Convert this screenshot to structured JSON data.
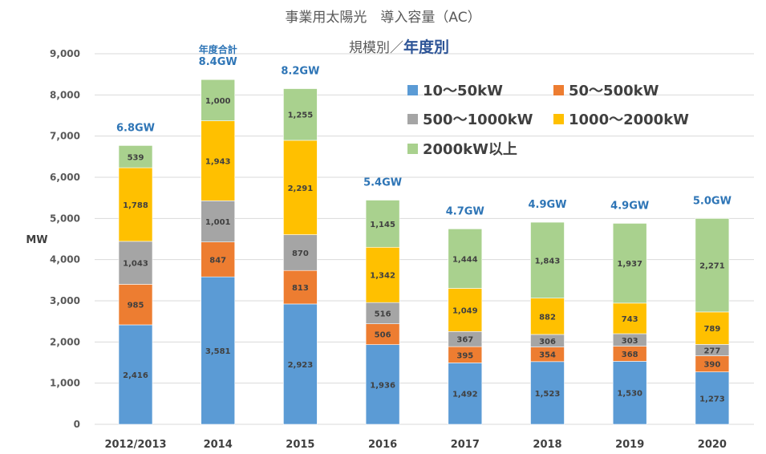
{
  "chart_data": {
    "type": "bar",
    "stacked": true,
    "title": "事業用太陽光　導入容量（AC）",
    "subtitle_prefix": "規模別／",
    "subtitle_emphasis": "年度別",
    "ylabel": "MW",
    "xlabel": "",
    "ylim": [
      0,
      9000
    ],
    "yticks": [
      "0",
      "1,000",
      "2,000",
      "3,000",
      "4,000",
      "5,000",
      "6,000",
      "7,000",
      "8,000",
      "9,000"
    ],
    "grid": true,
    "legend_position": "top-right",
    "categories": [
      "2012/2013",
      "2014",
      "2015",
      "2016",
      "2017",
      "2018",
      "2019",
      "2020"
    ],
    "series": [
      {
        "name": "10～50kW",
        "color": "#5b9bd5",
        "values": [
          2416,
          3581,
          2923,
          1936,
          1492,
          1523,
          1530,
          1273
        ],
        "labels": [
          "2,416",
          "3,581",
          "2,923",
          "1,936",
          "1,492",
          "1,523",
          "1,530",
          "1,273"
        ]
      },
      {
        "name": "50～500kW",
        "color": "#ed7d31",
        "values": [
          985,
          847,
          813,
          506,
          395,
          354,
          368,
          390
        ],
        "labels": [
          "985",
          "847",
          "813",
          "506",
          "395",
          "354",
          "368",
          "390"
        ]
      },
      {
        "name": "500～1000kW",
        "color": "#a5a5a5",
        "values": [
          1043,
          1001,
          870,
          516,
          367,
          306,
          303,
          277
        ],
        "labels": [
          "1,043",
          "1,001",
          "870",
          "516",
          "367",
          "306",
          "303",
          "277"
        ]
      },
      {
        "name": "1000～2000kW",
        "color": "#ffc000",
        "values": [
          1788,
          1943,
          2291,
          1342,
          1049,
          882,
          743,
          789
        ],
        "labels": [
          "1,788",
          "1,943",
          "2,291",
          "1,342",
          "1,049",
          "882",
          "743",
          "789"
        ]
      },
      {
        "name": "2000kW以上",
        "color": "#a9d18e",
        "values": [
          539,
          1000,
          1255,
          1145,
          1444,
          1843,
          1937,
          2271
        ],
        "labels": [
          "539",
          "1,000",
          "1,255",
          "1,145",
          "1,444",
          "1,843",
          "1,937",
          "2,271"
        ]
      }
    ],
    "totals": [
      "6.8GW",
      "8.4GW",
      "8.2GW",
      "5.4GW",
      "4.7GW",
      "4.9GW",
      "4.9GW",
      "5.0GW"
    ],
    "total_annotation": "年度合計",
    "total_color": "#2e75b6"
  }
}
